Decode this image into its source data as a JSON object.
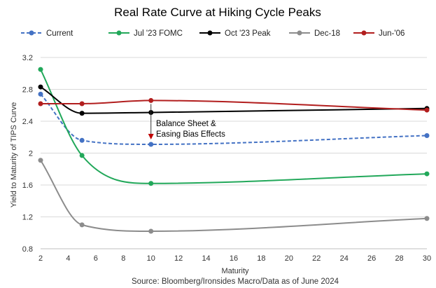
{
  "chart_data": {
    "type": "line",
    "title": "Real Rate Curve at Hiking Cycle Peaks",
    "xlabel": "Maturity",
    "ylabel": "Yield to Maturity of TIPS Curve",
    "source": "Source: Bloomberg/Ironsides Macro/Data as of June 2024",
    "xlim": [
      2,
      30
    ],
    "ylim": [
      0.8,
      3.2
    ],
    "x_ticks": [
      "2",
      "4",
      "6",
      "8",
      "10",
      "12",
      "14",
      "16",
      "18",
      "20",
      "22",
      "24",
      "26",
      "28",
      "30"
    ],
    "y_ticks": [
      "0.8",
      "1.2",
      "1.6",
      "2",
      "2.4",
      "2.8",
      "3.2"
    ],
    "legend_position": "top",
    "grid": "horizontal",
    "annotation": {
      "lines": [
        "Balance Sheet &",
        "Easing Bias Effects"
      ],
      "x": 10,
      "y_from": 2.66,
      "y_to": 2.11,
      "color": "#c00000"
    },
    "series": [
      {
        "name": "Current",
        "color": "#4472c4",
        "dashed": true,
        "x": [
          2,
          5,
          10,
          30
        ],
        "y": [
          2.74,
          2.16,
          2.11,
          2.22
        ]
      },
      {
        "name": "Jul '23 FOMC",
        "color": "#22a85a",
        "dashed": false,
        "x": [
          2,
          5,
          10,
          30
        ],
        "y": [
          3.05,
          1.97,
          1.62,
          1.74
        ]
      },
      {
        "name": "Oct '23 Peak",
        "color": "#000000",
        "dashed": false,
        "x": [
          2,
          5,
          10,
          30
        ],
        "y": [
          2.83,
          2.5,
          2.51,
          2.56
        ]
      },
      {
        "name": "Dec-18",
        "color": "#8c8c8c",
        "dashed": false,
        "x": [
          2,
          5,
          10,
          30
        ],
        "y": [
          1.91,
          1.1,
          1.02,
          1.18
        ]
      },
      {
        "name": "Jun-'06",
        "color": "#b21e1e",
        "dashed": false,
        "x": [
          2,
          5,
          10,
          30
        ],
        "y": [
          2.62,
          2.62,
          2.66,
          2.54
        ]
      }
    ]
  }
}
